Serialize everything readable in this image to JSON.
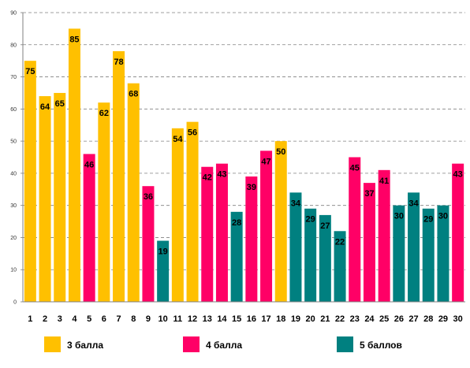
{
  "chart_data": {
    "type": "bar",
    "categories": [
      "1",
      "2",
      "3",
      "4",
      "5",
      "6",
      "7",
      "8",
      "9",
      "10",
      "11",
      "12",
      "13",
      "14",
      "15",
      "16",
      "17",
      "18",
      "19",
      "20",
      "21",
      "22",
      "23",
      "24",
      "25",
      "26",
      "27",
      "28",
      "29",
      "30"
    ],
    "values": [
      75,
      64,
      65,
      85,
      46,
      62,
      78,
      68,
      36,
      19,
      54,
      56,
      42,
      43,
      28,
      39,
      47,
      50,
      34,
      29,
      27,
      22,
      45,
      37,
      41,
      30,
      34,
      29,
      30,
      43
    ],
    "groups": [
      "3",
      "3",
      "3",
      "3",
      "4",
      "3",
      "3",
      "3",
      "4",
      "5",
      "3",
      "3",
      "4",
      "4",
      "5",
      "4",
      "4",
      "3",
      "5",
      "5",
      "5",
      "5",
      "4",
      "4",
      "4",
      "5",
      "5",
      "5",
      "5",
      "4"
    ],
    "legend": [
      {
        "key": "3",
        "name": "3 балла",
        "color": "#FFC000"
      },
      {
        "key": "4",
        "name": "4 балла",
        "color": "#FF0066"
      },
      {
        "key": "5",
        "name": "5 баллов",
        "color": "#008080"
      }
    ],
    "ylim": [
      0,
      90
    ],
    "yticks": [
      0,
      10,
      20,
      30,
      40,
      50,
      60,
      70,
      80,
      90
    ],
    "grid": true,
    "legend_position": "bottom"
  }
}
